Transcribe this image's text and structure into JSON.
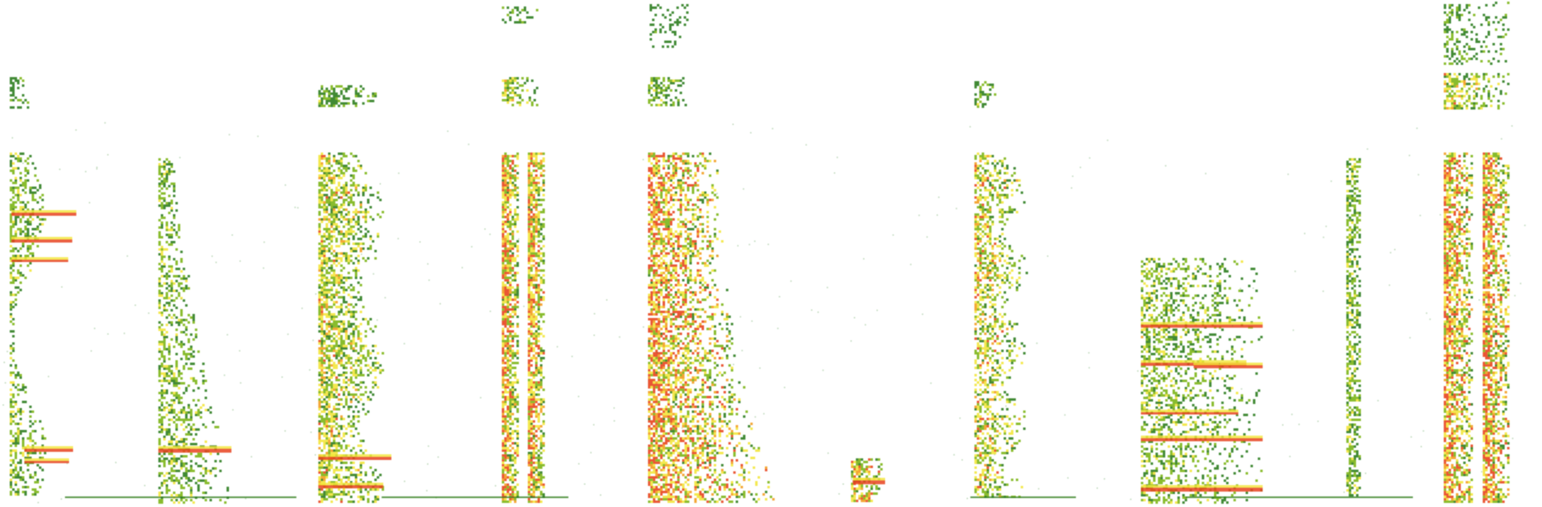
{
  "image": {
    "background": "#ffffff",
    "content": "spectrogram-strips",
    "colormap": {
      "low": "#2e7d1c",
      "mid": "#7cb518",
      "high": "#f2e63a",
      "peak": "#f39c1f",
      "max": "#e8431c"
    }
  }
}
